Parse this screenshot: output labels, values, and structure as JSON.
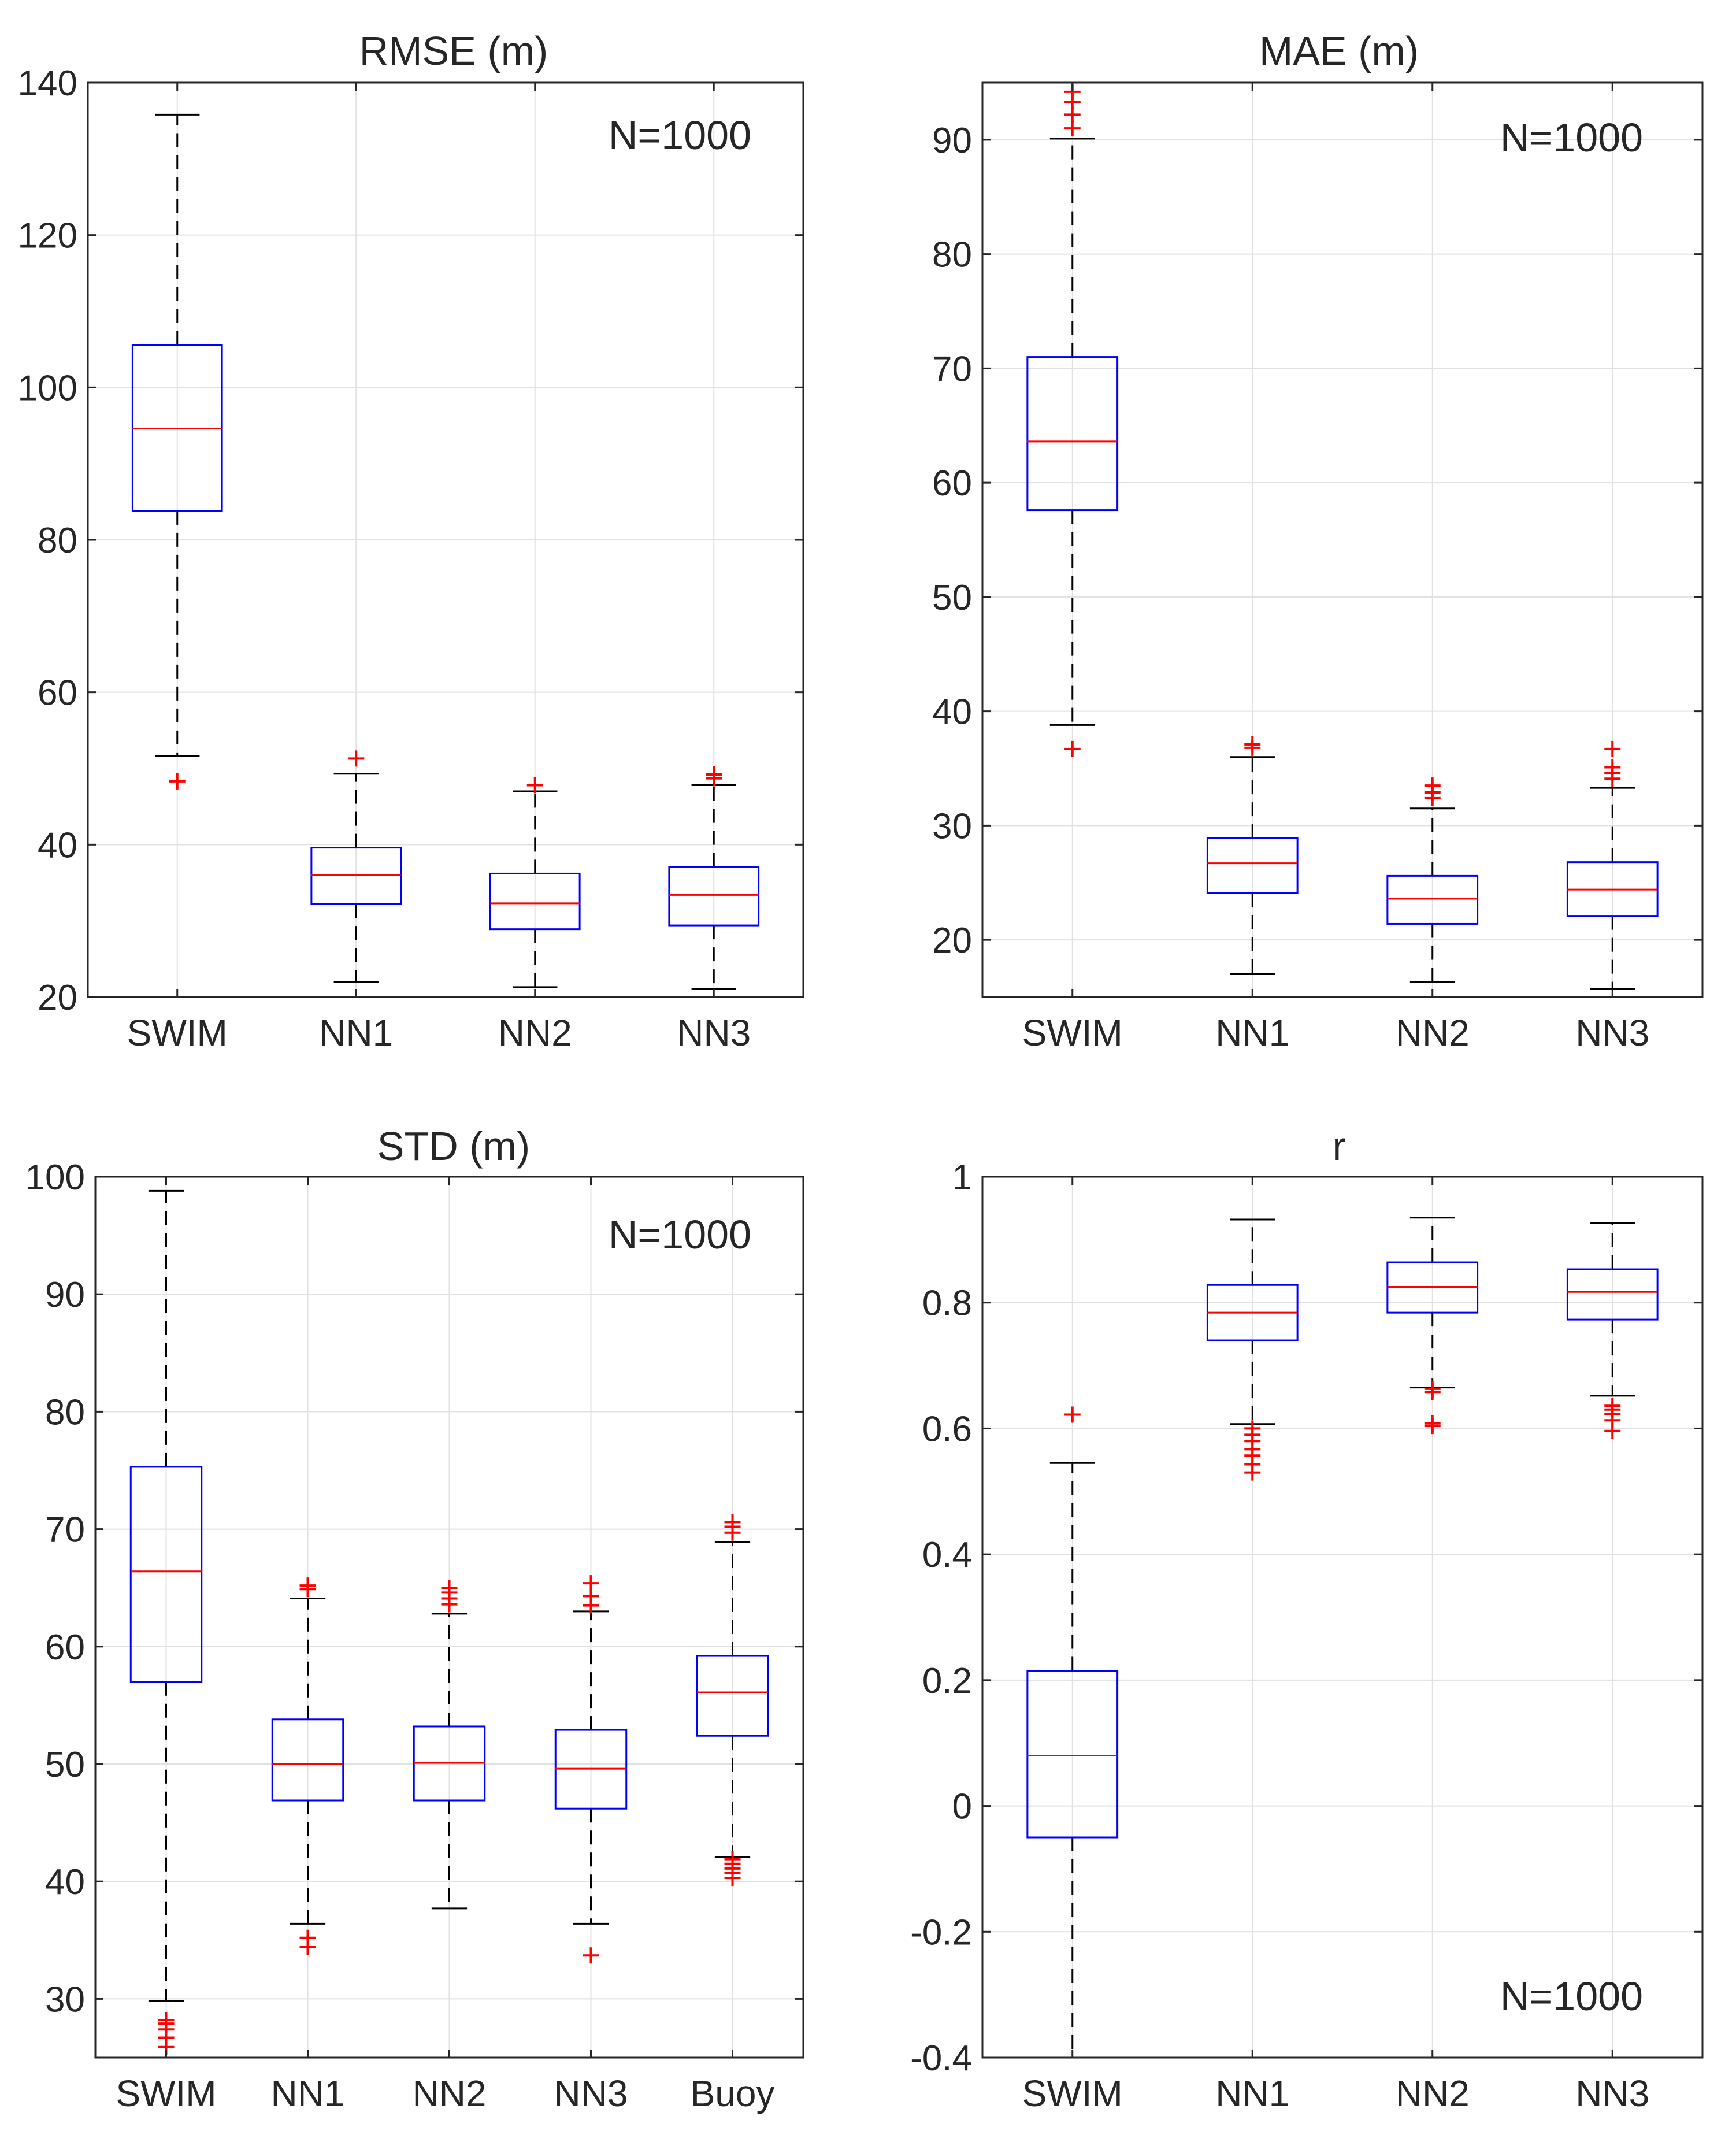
{
  "chart_data": [
    {
      "type": "box",
      "title": "RMSE (m)",
      "annotation": "N=1000",
      "annotation_position": "top-right",
      "ylim": [
        20,
        140
      ],
      "yticks": [
        20,
        40,
        60,
        80,
        100,
        120,
        140
      ],
      "ytick_labels": [
        "20",
        "40",
        "60",
        "80",
        "100",
        "120",
        "140"
      ],
      "grid": true,
      "categories": [
        "SWIM",
        "NN1",
        "NN2",
        "NN3"
      ],
      "boxes": [
        {
          "q1": 83.8,
          "median": 94.6,
          "q3": 105.6,
          "whisker_low": 51.6,
          "whisker_high": 135.8,
          "outliers": [
            48.3
          ]
        },
        {
          "q1": 32.2,
          "median": 36.0,
          "q3": 39.6,
          "whisker_low": 22.0,
          "whisker_high": 49.3,
          "outliers": [
            51.3
          ]
        },
        {
          "q1": 28.9,
          "median": 32.3,
          "q3": 36.2,
          "whisker_low": 21.3,
          "whisker_high": 47.0,
          "outliers": [
            47.8
          ]
        },
        {
          "q1": 29.4,
          "median": 33.4,
          "q3": 37.1,
          "whisker_low": 21.1,
          "whisker_high": 47.8,
          "outliers": [
            48.7,
            49.2
          ]
        }
      ]
    },
    {
      "type": "box",
      "title": "MAE (m)",
      "annotation": "N=1000",
      "annotation_position": "top-right",
      "ylim": [
        15,
        95
      ],
      "yticks": [
        20,
        30,
        40,
        50,
        60,
        70,
        80,
        90
      ],
      "ytick_labels": [
        "20",
        "30",
        "40",
        "50",
        "60",
        "70",
        "80",
        "90"
      ],
      "grid": true,
      "categories": [
        "SWIM",
        "NN1",
        "NN2",
        "NN3"
      ],
      "boxes": [
        {
          "q1": 57.6,
          "median": 63.6,
          "q3": 71.0,
          "whisker_low": 38.8,
          "whisker_high": 90.1,
          "outliers": [
            36.7,
            91.0,
            92.2,
            93.3,
            94.2
          ]
        },
        {
          "q1": 24.1,
          "median": 26.7,
          "q3": 28.9,
          "whisker_low": 17.0,
          "whisker_high": 36.0,
          "outliers": [
            36.8,
            37.1
          ]
        },
        {
          "q1": 21.4,
          "median": 23.6,
          "q3": 25.6,
          "whisker_low": 16.3,
          "whisker_high": 31.5,
          "outliers": [
            32.4,
            32.9,
            33.5
          ]
        },
        {
          "q1": 22.1,
          "median": 24.4,
          "q3": 26.8,
          "whisker_low": 15.7,
          "whisker_high": 33.3,
          "outliers": [
            34.1,
            34.6,
            35.1,
            36.7
          ]
        }
      ]
    },
    {
      "type": "box",
      "title": "STD (m)",
      "annotation": "N=1000",
      "annotation_position": "top-right",
      "ylim": [
        25,
        100
      ],
      "yticks": [
        30,
        40,
        50,
        60,
        70,
        80,
        90,
        100
      ],
      "ytick_labels": [
        "30",
        "40",
        "50",
        "60",
        "70",
        "80",
        "90",
        "100"
      ],
      "grid": true,
      "categories": [
        "SWIM",
        "NN1",
        "NN2",
        "NN3",
        "Buoy"
      ],
      "boxes": [
        {
          "q1": 57.0,
          "median": 66.4,
          "q3": 75.3,
          "whisker_low": 29.8,
          "whisker_high": 98.8,
          "outliers": [
            25.9,
            26.7,
            27.4,
            27.9,
            28.2
          ]
        },
        {
          "q1": 46.9,
          "median": 50.0,
          "q3": 53.8,
          "whisker_low": 36.4,
          "whisker_high": 64.1,
          "outliers": [
            34.4,
            35.2,
            64.9,
            65.2
          ]
        },
        {
          "q1": 46.9,
          "median": 50.1,
          "q3": 53.2,
          "whisker_low": 37.7,
          "whisker_high": 62.8,
          "outliers": [
            63.6,
            64.1,
            64.6,
            65.0
          ]
        },
        {
          "q1": 46.2,
          "median": 49.6,
          "q3": 52.9,
          "whisker_low": 36.4,
          "whisker_high": 63.0,
          "outliers": [
            33.7,
            63.5,
            64.3,
            65.4
          ]
        },
        {
          "q1": 52.4,
          "median": 56.1,
          "q3": 59.2,
          "whisker_low": 42.1,
          "whisker_high": 68.9,
          "outliers": [
            40.3,
            40.7,
            41.1,
            41.5,
            41.9,
            69.7,
            70.2,
            70.6
          ]
        }
      ]
    },
    {
      "type": "box",
      "title": "r",
      "annotation": "N=1000",
      "annotation_position": "bottom-right",
      "ylim": [
        -0.4,
        1.0
      ],
      "yticks": [
        -0.4,
        -0.2,
        0,
        0.2,
        0.4,
        0.6,
        0.8,
        1
      ],
      "ytick_labels": [
        "-0.4",
        "-0.2",
        "0",
        "0.2",
        "0.4",
        "0.6",
        "0.8",
        "1"
      ],
      "grid": true,
      "categories": [
        "SWIM",
        "NN1",
        "NN2",
        "NN3"
      ],
      "boxes": [
        {
          "q1": -0.05,
          "median": 0.08,
          "q3": 0.215,
          "whisker_low": -0.4,
          "whisker_high": 0.545,
          "outliers": [
            0.622
          ]
        },
        {
          "q1": 0.74,
          "median": 0.784,
          "q3": 0.828,
          "whisker_low": 0.607,
          "whisker_high": 0.932,
          "outliers": [
            0.53,
            0.543,
            0.557,
            0.567,
            0.58,
            0.59,
            0.6
          ]
        },
        {
          "q1": 0.784,
          "median": 0.825,
          "q3": 0.864,
          "whisker_low": 0.665,
          "whisker_high": 0.935,
          "outliers": [
            0.604,
            0.608,
            0.658,
            0.663
          ]
        },
        {
          "q1": 0.773,
          "median": 0.817,
          "q3": 0.853,
          "whisker_low": 0.652,
          "whisker_high": 0.926,
          "outliers": [
            0.596,
            0.613,
            0.623,
            0.63,
            0.636
          ]
        }
      ]
    }
  ],
  "colors": {
    "box": "#0000ff",
    "median": "#ff0000",
    "outlier": "#ff0000",
    "whisker": "#000000",
    "axis": "#262626",
    "grid": "#e1e1e1"
  }
}
